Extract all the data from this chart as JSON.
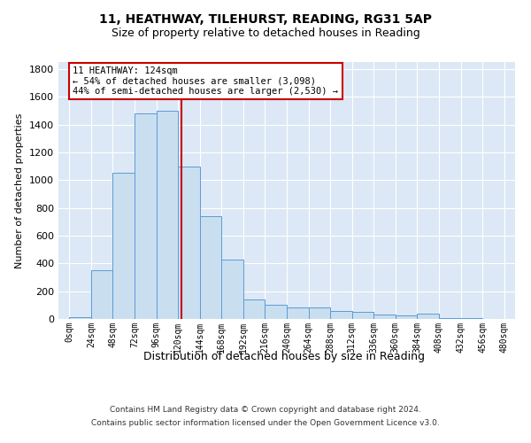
{
  "title1": "11, HEATHWAY, TILEHURST, READING, RG31 5AP",
  "title2": "Size of property relative to detached houses in Reading",
  "xlabel": "Distribution of detached houses by size in Reading",
  "ylabel": "Number of detached properties",
  "bar_color": "#c9dff0",
  "bar_edge_color": "#5b9bd5",
  "bins": [
    0,
    24,
    48,
    72,
    96,
    120,
    144,
    168,
    192,
    216,
    240,
    264,
    288,
    312,
    336,
    360,
    384,
    408,
    432,
    456,
    480
  ],
  "counts": [
    10,
    350,
    1050,
    1480,
    1500,
    1100,
    740,
    430,
    140,
    100,
    80,
    80,
    60,
    50,
    30,
    25,
    40,
    5,
    5,
    3
  ],
  "property_size": 124,
  "annotation_line1": "11 HEATHWAY: 124sqm",
  "annotation_line2": "← 54% of detached houses are smaller (3,098)",
  "annotation_line3": "44% of semi-detached houses are larger (2,530) →",
  "vline_color": "#cc0000",
  "annotation_box_color": "#ffffff",
  "annotation_box_edge": "#cc0000",
  "ylim": [
    0,
    1850
  ],
  "xlim_min": -12,
  "xlim_max": 492,
  "bg_color": "#ffffff",
  "plot_bg_color": "#dce8f5",
  "grid_color": "#ffffff",
  "footer1": "Contains HM Land Registry data © Crown copyright and database right 2024.",
  "footer2": "Contains public sector information licensed under the Open Government Licence v3.0.",
  "tick_labels": [
    "0sqm",
    "24sqm",
    "48sqm",
    "72sqm",
    "96sqm",
    "120sqm",
    "144sqm",
    "168sqm",
    "192sqm",
    "216sqm",
    "240sqm",
    "264sqm",
    "288sqm",
    "312sqm",
    "336sqm",
    "360sqm",
    "384sqm",
    "408sqm",
    "432sqm",
    "456sqm",
    "480sqm"
  ]
}
